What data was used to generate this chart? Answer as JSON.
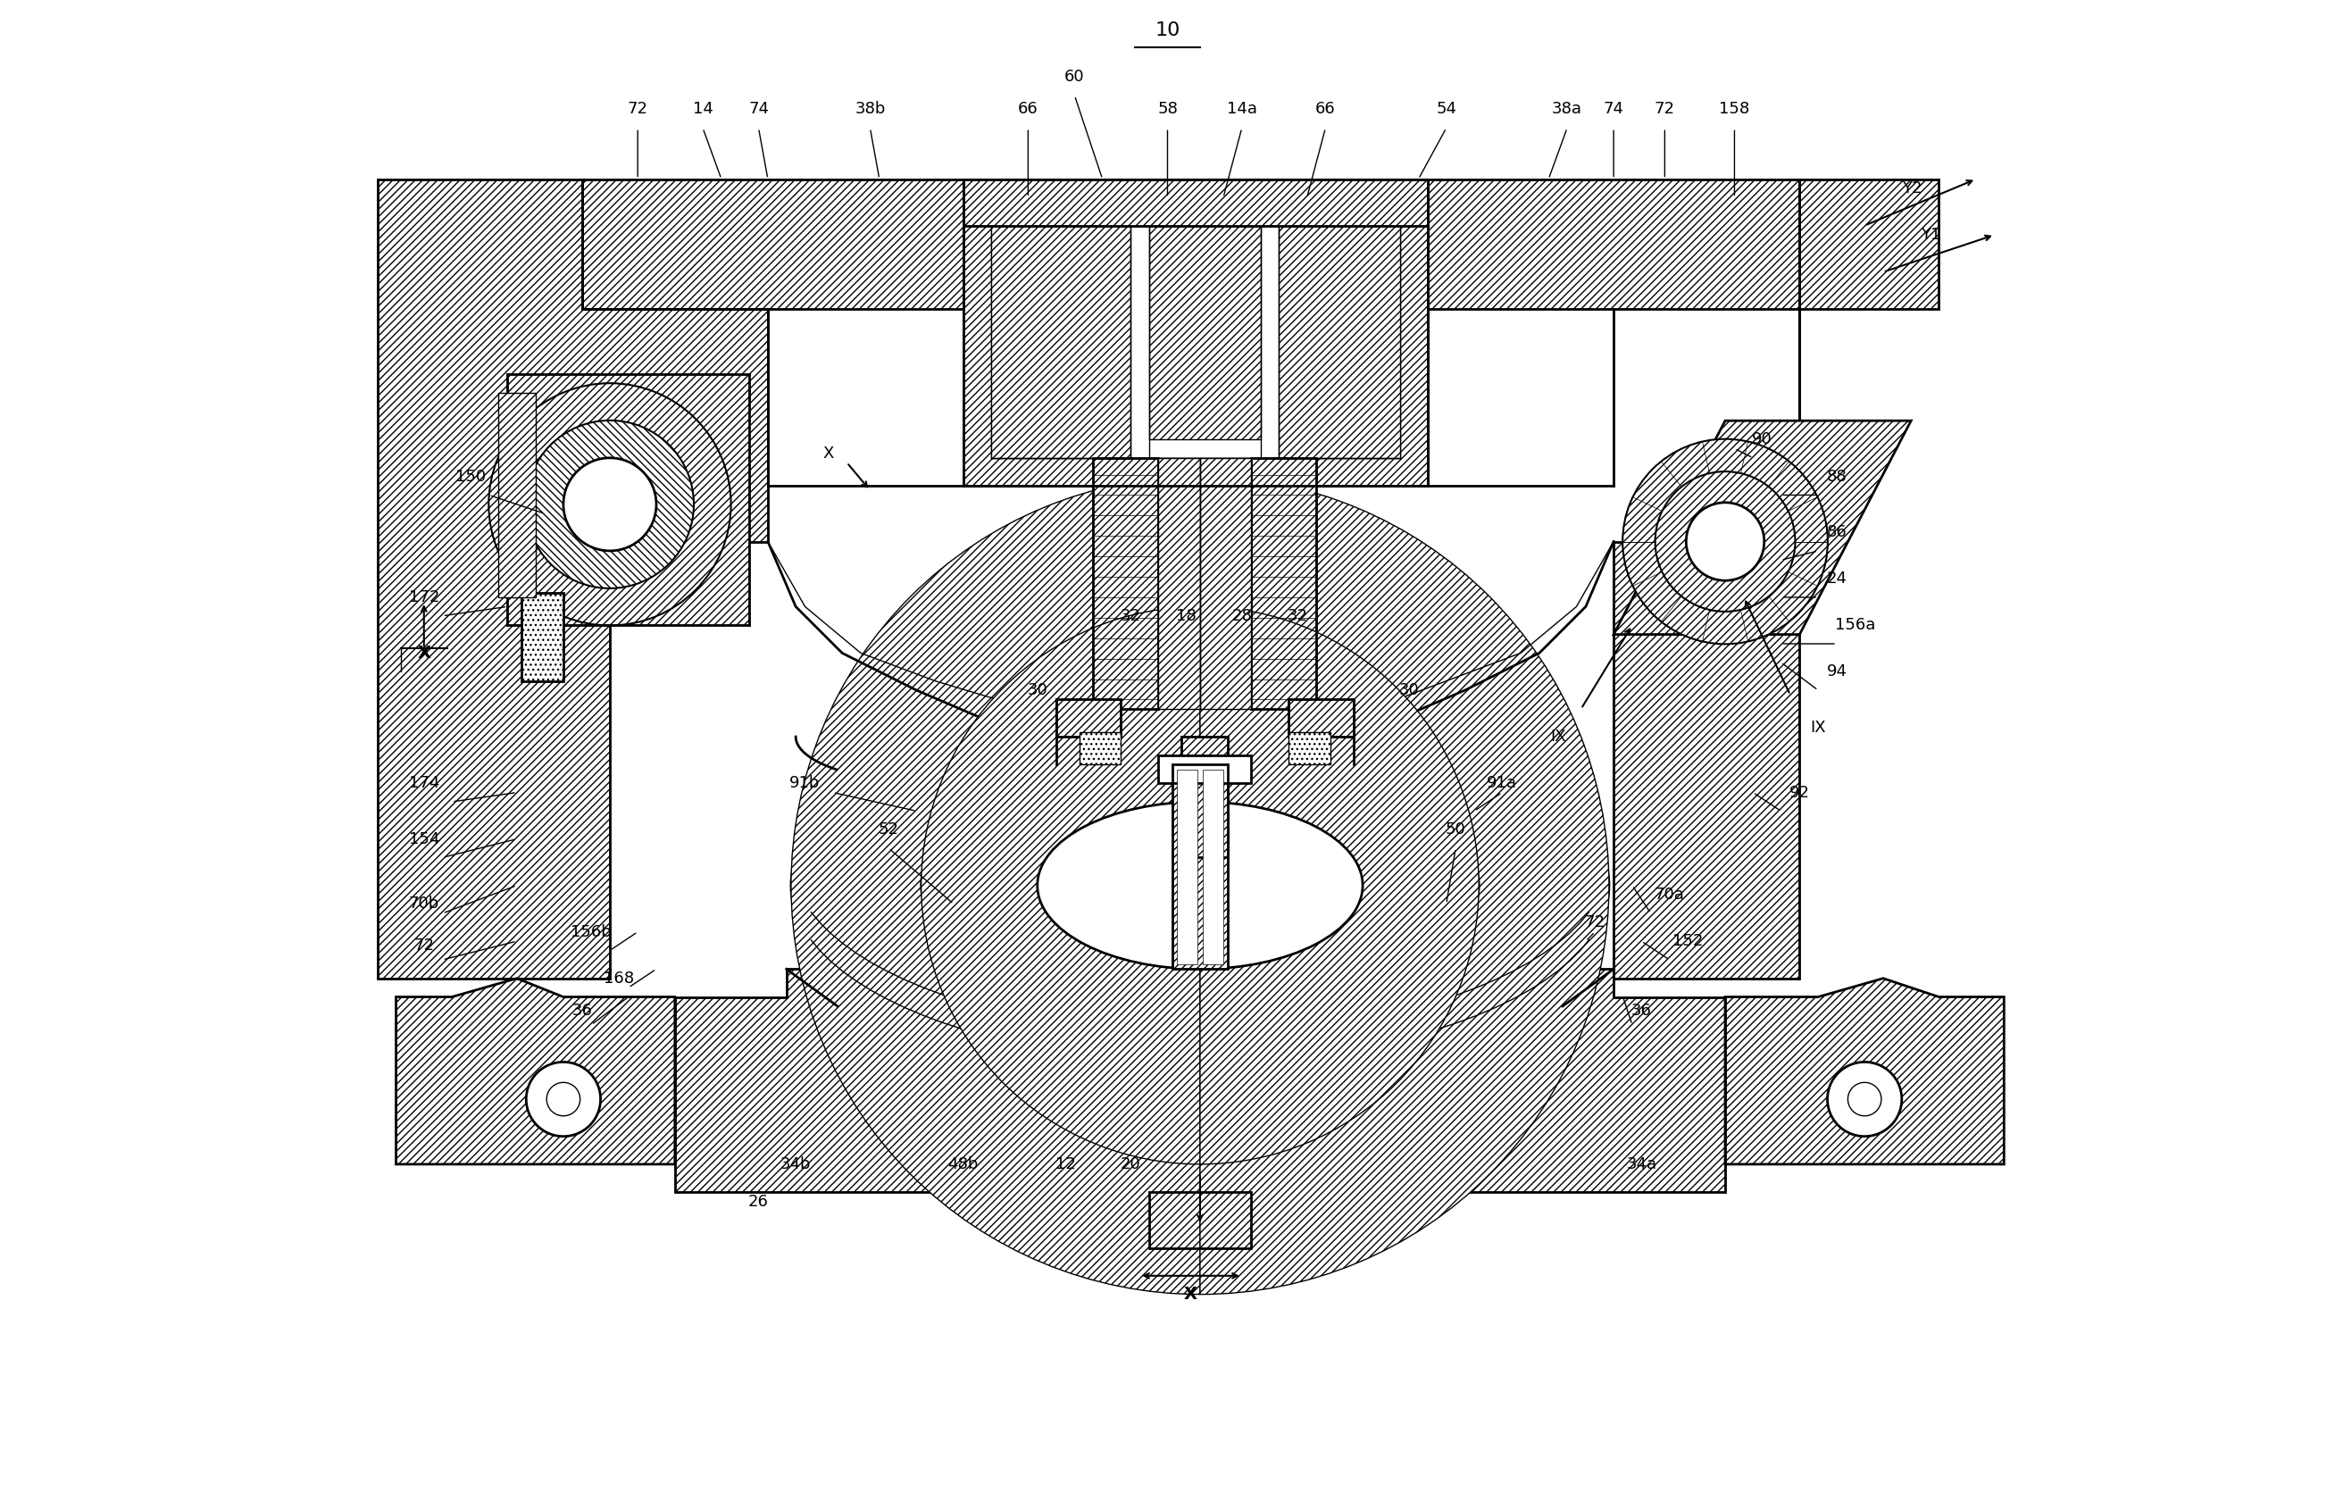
{
  "title": "10",
  "bg_color": "#ffffff",
  "line_color": "#000000",
  "fig_width": 26.15,
  "fig_height": 16.71,
  "xlim": [
    0,
    19
  ],
  "ylim": [
    0,
    16
  ],
  "lw_main": 2.0,
  "lw_thin": 1.0,
  "label_fs": 13,
  "top_labels": [
    [
      "72",
      3.8,
      14.85
    ],
    [
      "14",
      4.5,
      14.85
    ],
    [
      "74",
      5.1,
      14.85
    ],
    [
      "38b",
      6.3,
      14.85
    ],
    [
      "60",
      8.5,
      15.2
    ],
    [
      "66",
      8.0,
      14.85
    ],
    [
      "58",
      9.5,
      14.85
    ],
    [
      "14a",
      10.3,
      14.85
    ],
    [
      "66",
      11.2,
      14.85
    ],
    [
      "54",
      12.5,
      14.85
    ],
    [
      "38a",
      13.8,
      14.85
    ],
    [
      "74",
      14.3,
      14.85
    ],
    [
      "72",
      14.85,
      14.85
    ],
    [
      "158",
      15.6,
      14.85
    ]
  ],
  "left_labels": [
    [
      "150",
      2.0,
      10.9
    ],
    [
      "172",
      1.5,
      9.6
    ],
    [
      "174",
      1.5,
      7.6
    ],
    [
      "154",
      1.5,
      7.0
    ],
    [
      "70b",
      1.5,
      6.3
    ],
    [
      "72",
      1.5,
      5.85
    ],
    [
      "156b",
      3.3,
      6.0
    ],
    [
      "168",
      3.6,
      5.5
    ],
    [
      "36",
      3.2,
      5.15
    ]
  ],
  "right_labels": [
    [
      "90",
      15.9,
      11.3
    ],
    [
      "88",
      16.7,
      10.9
    ],
    [
      "86",
      16.7,
      10.3
    ],
    [
      "24",
      16.7,
      9.8
    ],
    [
      "156a",
      16.9,
      9.3
    ],
    [
      "94",
      16.7,
      8.8
    ],
    [
      "92",
      16.3,
      7.5
    ],
    [
      "70a",
      14.9,
      6.4
    ],
    [
      "152",
      15.1,
      5.9
    ],
    [
      "72",
      14.1,
      6.1
    ],
    [
      "36",
      14.6,
      5.15
    ]
  ],
  "center_labels": [
    [
      "32",
      9.1,
      9.4
    ],
    [
      "18",
      9.7,
      9.4
    ],
    [
      "28",
      10.3,
      9.4
    ],
    [
      "32",
      10.9,
      9.4
    ],
    [
      "30",
      8.1,
      8.6
    ],
    [
      "30",
      12.1,
      8.6
    ],
    [
      "91b",
      5.6,
      7.6
    ],
    [
      "52",
      6.5,
      7.1
    ],
    [
      "50",
      12.6,
      7.1
    ],
    [
      "91a",
      13.1,
      7.6
    ]
  ],
  "bottom_labels": [
    [
      "34b",
      5.5,
      3.5
    ],
    [
      "48b",
      7.3,
      3.5
    ],
    [
      "12",
      8.4,
      3.5
    ],
    [
      "20",
      9.1,
      3.5
    ],
    [
      "26",
      5.1,
      3.1
    ],
    [
      "34a",
      14.6,
      3.5
    ]
  ]
}
